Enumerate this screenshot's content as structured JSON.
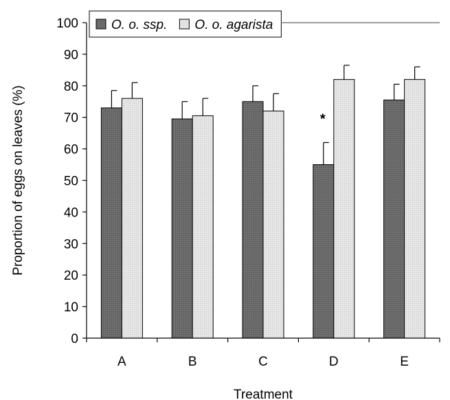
{
  "chart_data": {
    "type": "bar",
    "title": "",
    "xlabel": "Treatment",
    "ylabel": "Proportion of eggs on leaves (%)",
    "ylim": [
      0,
      100
    ],
    "yticks": [
      "0",
      "10",
      "20",
      "30",
      "40",
      "50",
      "60",
      "70",
      "80",
      "90",
      "100"
    ],
    "categories": [
      "A",
      "B",
      "C",
      "D",
      "E"
    ],
    "series": [
      {
        "name": "O. o. ssp.",
        "values": [
          73,
          69.5,
          75,
          55,
          75.5
        ],
        "error": [
          5.5,
          5.5,
          5,
          7,
          5
        ],
        "color": "#6e6e6e"
      },
      {
        "name": "O. o. agarista",
        "values": [
          76,
          70.5,
          72,
          82,
          82
        ],
        "error": [
          5,
          5.5,
          5.5,
          4.5,
          4
        ],
        "color": "#e4e4e4"
      }
    ],
    "legend": "top",
    "grid": false,
    "annotations": [
      {
        "text": "*",
        "category": "D"
      }
    ]
  }
}
